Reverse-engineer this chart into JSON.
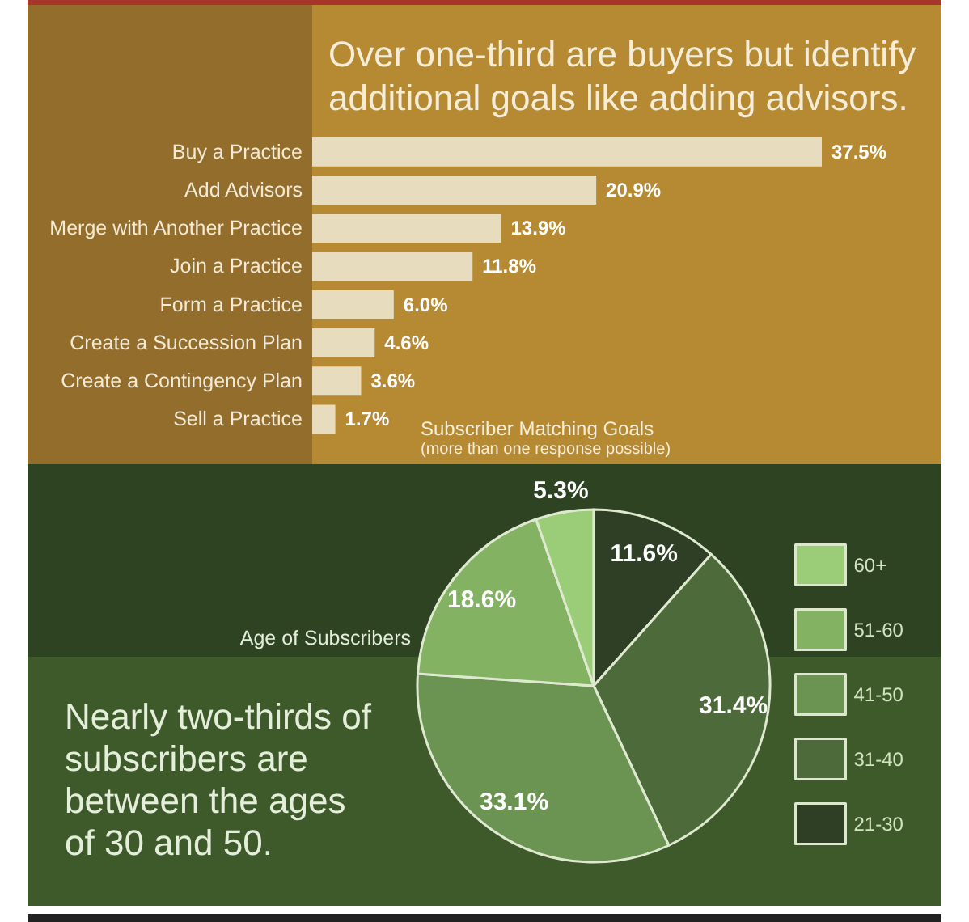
{
  "chart_data": [
    {
      "type": "bar",
      "orientation": "horizontal",
      "title": "Over one-third are buyers but identify additional goals like adding advisors.",
      "subtitle": "Subscriber Matching Goals",
      "annotations": [
        "(more than one response possible)"
      ],
      "categories": [
        "Buy a Practice",
        "Add Advisors",
        "Merge with Another Practice",
        "Join a Practice",
        "Form a Practice",
        "Create a Succession Plan",
        "Create a Contingency Plan",
        "Sell a Practice"
      ],
      "values": [
        37.5,
        20.9,
        13.9,
        11.8,
        6.0,
        4.6,
        3.6,
        1.7
      ],
      "value_labels": [
        "37.5%",
        "20.9%",
        "13.9%",
        "11.8%",
        "6.0%",
        "4.6%",
        "3.6%",
        "1.7%"
      ],
      "color": "#e8dcbf"
    },
    {
      "type": "pie",
      "title": "Nearly two-thirds of subscribers are between the ages of 30 and 50.",
      "subtitle": "Age of Subscribers",
      "categories": [
        "21-30",
        "31-40",
        "41-50",
        "51-60",
        "60+"
      ],
      "values": [
        11.6,
        31.4,
        33.1,
        18.6,
        5.3
      ],
      "value_labels": [
        "11.6%",
        "31.4%",
        "33.1%",
        "18.6%",
        "5.3%"
      ],
      "colors": [
        "#2f3f26",
        "#4c6a3a",
        "#6b9452",
        "#84b263",
        "#9bcd78"
      ],
      "legend": "right"
    }
  ]
}
